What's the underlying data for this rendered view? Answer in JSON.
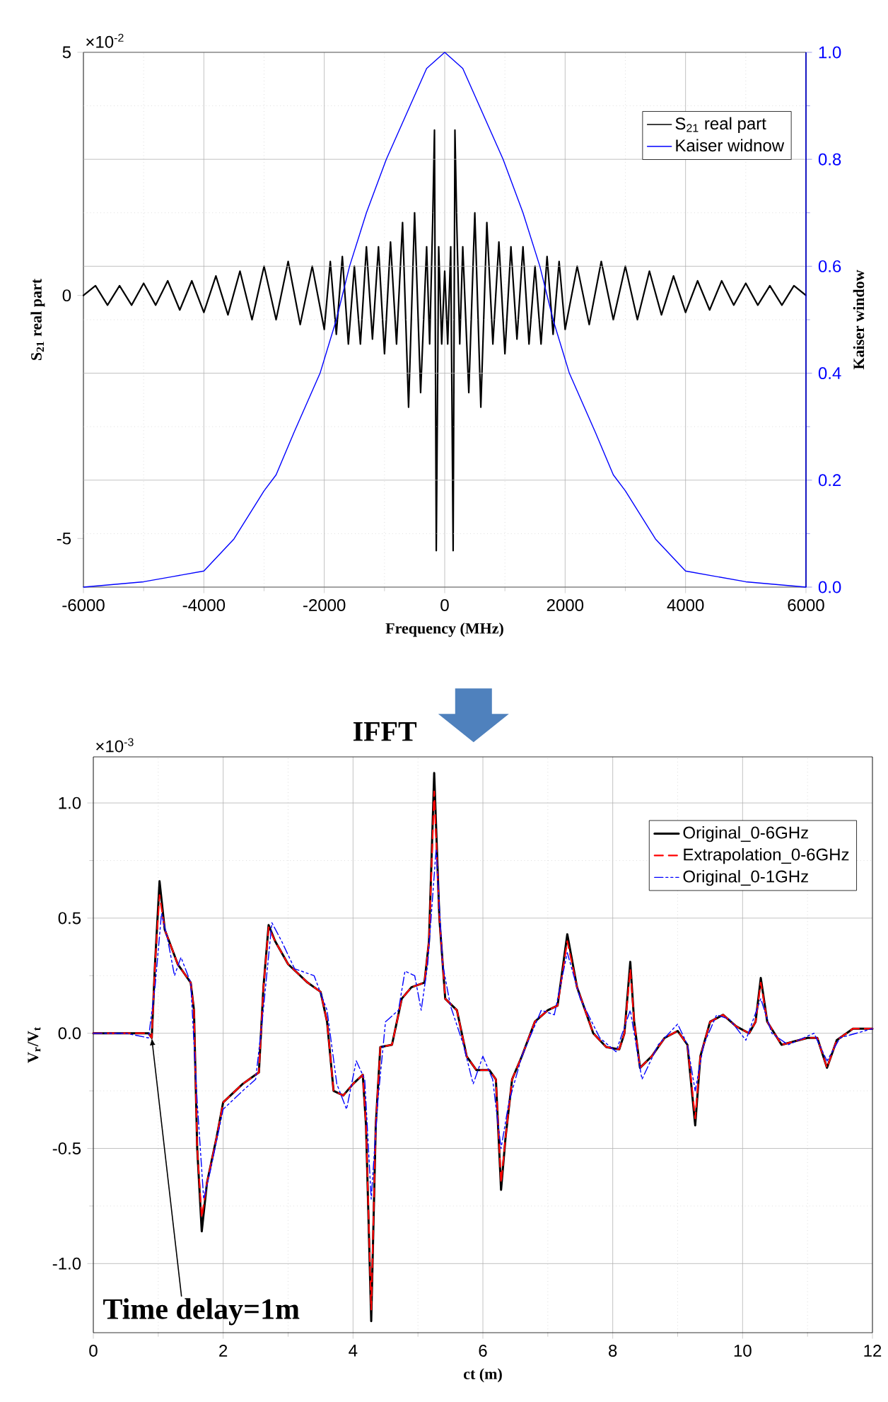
{
  "chart_data": [
    {
      "type": "line",
      "xlabel": "Frequency (MHz)",
      "ylabel": "S$_{21}$ real part",
      "y2label": "Kaiser window",
      "xlim": [
        -6000,
        6000
      ],
      "xticks": [
        -6000,
        -4000,
        -2000,
        0,
        2000,
        4000,
        6000
      ],
      "ylim": [
        -6,
        5
      ],
      "yticks": [
        -5,
        0,
        5
      ],
      "y2lim": [
        0,
        1
      ],
      "y2ticks": [
        {
          "value": 0,
          "label": "0.0"
        },
        {
          "value": 0.2,
          "label": "0.2"
        },
        {
          "value": 0.4,
          "label": "0.4"
        },
        {
          "value": 0.6,
          "label": "0.6"
        },
        {
          "value": 0.8,
          "label": "0.8"
        },
        {
          "value": 1,
          "label": "1.0"
        }
      ],
      "grid": true,
      "legend": "top right",
      "annotations": [
        "×10$^{-2}$"
      ],
      "series": [
        {
          "name": "S$_{21}$ real part",
          "color": "#000000",
          "line_style": "solid",
          "x": [
            -6000,
            -5800,
            -5600,
            -5400,
            -5200,
            -5000,
            -4800,
            -4600,
            -4400,
            -4200,
            -4000,
            -3800,
            -3600,
            -3400,
            -3200,
            -3000,
            -2800,
            -2600,
            -2400,
            -2200,
            -2000,
            -1900,
            -1800,
            -1700,
            -1600,
            -1500,
            -1400,
            -1300,
            -1200,
            -1100,
            -1000,
            -900,
            -800,
            -700,
            -600,
            -500,
            -400,
            -300,
            -250,
            -200,
            -170,
            -140,
            -100,
            -50,
            0,
            50,
            100,
            140,
            170,
            200,
            250,
            300,
            400,
            500,
            600,
            700,
            800,
            900,
            1000,
            1100,
            1200,
            1300,
            1400,
            1500,
            1600,
            1700,
            1800,
            1900,
            2000,
            2200,
            2400,
            2600,
            2800,
            3000,
            3200,
            3400,
            3600,
            3800,
            4000,
            4200,
            4400,
            4600,
            4800,
            5000,
            5200,
            5400,
            5600,
            5800,
            6000
          ],
          "values": [
            0,
            0.2,
            -0.2,
            0.2,
            -0.2,
            0.25,
            -0.2,
            0.3,
            -0.3,
            0.3,
            -0.35,
            0.4,
            -0.4,
            0.5,
            -0.5,
            0.6,
            -0.5,
            0.7,
            -0.6,
            0.6,
            -0.7,
            0.7,
            -0.8,
            0.8,
            -1.0,
            0.6,
            -1.0,
            1.0,
            -0.9,
            1.0,
            -1.2,
            1.1,
            -1.0,
            1.5,
            -2.3,
            1.7,
            -2.0,
            1.0,
            -1.0,
            1.5,
            3.4,
            -5.25,
            1.0,
            -1.0,
            0.5,
            -1.0,
            1.0,
            -5.25,
            3.4,
            1.5,
            -1.0,
            1.0,
            -2.0,
            1.7,
            -2.3,
            1.5,
            -1.0,
            1.1,
            -1.2,
            1.0,
            -0.9,
            1.0,
            -1.0,
            0.6,
            -1.0,
            0.8,
            -0.8,
            0.7,
            -0.7,
            0.6,
            -0.6,
            0.7,
            -0.5,
            0.6,
            -0.5,
            0.5,
            -0.4,
            0.4,
            -0.35,
            0.3,
            -0.3,
            0.3,
            -0.2,
            0.25,
            -0.2,
            0.2,
            -0.2,
            0.2,
            0
          ]
        },
        {
          "name": "Kaiser widnow",
          "color": "#0000ff",
          "line_style": "solid",
          "axis": "y2",
          "x": [
            -6000,
            -5000,
            -4500,
            -4000,
            -3500,
            -3000,
            -2800,
            -2500,
            -2070,
            -1800,
            -1580,
            -1300,
            -970,
            -575,
            -300,
            0,
            300,
            575,
            970,
            1300,
            1580,
            1800,
            2070,
            2500,
            2800,
            3000,
            3500,
            4000,
            4500,
            5000,
            6000
          ],
          "values": [
            0,
            0.01,
            0.02,
            0.03,
            0.09,
            0.18,
            0.21,
            0.29,
            0.4,
            0.5,
            0.6,
            0.7,
            0.8,
            0.9,
            0.97,
            1,
            0.97,
            0.9,
            0.8,
            0.7,
            0.6,
            0.5,
            0.4,
            0.29,
            0.21,
            0.18,
            0.09,
            0.03,
            0.02,
            0.01,
            0
          ]
        }
      ]
    },
    {
      "type": "line",
      "xlabel": "ct (m)",
      "ylabel": "V$_{r}$/V$_{t}$",
      "xlim": [
        0,
        12
      ],
      "xticks": [
        0,
        2,
        4,
        6,
        8,
        10,
        12
      ],
      "ylim": [
        -1.3,
        1.2
      ],
      "yticks": [
        {
          "value": -1,
          "label": "-1.0"
        },
        {
          "value": -0.5,
          "label": "-0.5"
        },
        {
          "value": 0,
          "label": "0.0"
        },
        {
          "value": 0.5,
          "label": "0.5"
        },
        {
          "value": 1,
          "label": "1.0"
        }
      ],
      "grid": true,
      "legend": "top right",
      "annotations": [
        "×10$^{-3}$",
        "IFFT",
        {
          "text": "Time delay=1m",
          "x": 0.9,
          "y": -0.02
        }
      ],
      "series": [
        {
          "name": "Original_0-6GHz",
          "color": "#000000",
          "line_style": "solid",
          "x": [
            0,
            0.5,
            0.85,
            0.9,
            0.95,
            1.02,
            1.1,
            1.3,
            1.5,
            1.55,
            1.6,
            1.67,
            1.75,
            1.9,
            2.0,
            2.3,
            2.55,
            2.62,
            2.7,
            2.8,
            3.0,
            3.3,
            3.5,
            3.6,
            3.7,
            3.85,
            4.0,
            4.15,
            4.2,
            4.28,
            4.35,
            4.42,
            4.6,
            4.75,
            4.9,
            5.1,
            5.17,
            5.25,
            5.33,
            5.42,
            5.6,
            5.75,
            5.9,
            6.1,
            6.2,
            6.28,
            6.35,
            6.45,
            6.6,
            6.8,
            7.0,
            7.15,
            7.3,
            7.45,
            7.7,
            7.9,
            8.1,
            8.18,
            8.27,
            8.33,
            8.42,
            8.6,
            8.8,
            9.0,
            9.15,
            9.27,
            9.35,
            9.5,
            9.7,
            9.9,
            10.1,
            10.2,
            10.28,
            10.38,
            10.6,
            11.0,
            11.15,
            11.3,
            11.45,
            11.7,
            12.0
          ],
          "values": [
            0,
            0,
            0,
            -0.02,
            0.3,
            0.66,
            0.45,
            0.3,
            0.22,
            0.1,
            -0.5,
            -0.86,
            -0.65,
            -0.45,
            -0.3,
            -0.22,
            -0.17,
            0.2,
            0.47,
            0.4,
            0.3,
            0.22,
            0.18,
            0.05,
            -0.25,
            -0.27,
            -0.22,
            -0.18,
            -0.4,
            -1.25,
            -0.4,
            -0.06,
            -0.05,
            0.15,
            0.2,
            0.22,
            0.4,
            1.13,
            0.5,
            0.15,
            0.1,
            -0.1,
            -0.16,
            -0.16,
            -0.2,
            -0.68,
            -0.45,
            -0.2,
            -0.1,
            0.05,
            0.1,
            0.12,
            0.43,
            0.2,
            0.0,
            -0.06,
            -0.07,
            0.0,
            0.31,
            0.05,
            -0.15,
            -0.1,
            -0.02,
            0.01,
            -0.05,
            -0.4,
            -0.1,
            0.05,
            0.08,
            0.03,
            0.0,
            0.05,
            0.24,
            0.05,
            -0.05,
            -0.02,
            -0.02,
            -0.15,
            -0.03,
            0.02,
            0.02
          ]
        },
        {
          "name": "Extrapolation_0-6GHz",
          "color": "#ff0000",
          "line_style": "dashed",
          "x": [
            0,
            0.5,
            0.85,
            0.9,
            0.95,
            1.02,
            1.1,
            1.3,
            1.5,
            1.55,
            1.6,
            1.67,
            1.75,
            1.9,
            2.0,
            2.3,
            2.55,
            2.62,
            2.7,
            2.8,
            3.0,
            3.3,
            3.5,
            3.6,
            3.7,
            3.85,
            4.0,
            4.15,
            4.2,
            4.28,
            4.35,
            4.42,
            4.6,
            4.75,
            4.9,
            5.1,
            5.17,
            5.25,
            5.33,
            5.42,
            5.6,
            5.75,
            5.9,
            6.1,
            6.2,
            6.28,
            6.35,
            6.45,
            6.6,
            6.8,
            7.0,
            7.15,
            7.3,
            7.45,
            7.7,
            7.9,
            8.1,
            8.18,
            8.27,
            8.33,
            8.42,
            8.6,
            8.8,
            9.0,
            9.15,
            9.27,
            9.35,
            9.5,
            9.7,
            9.9,
            10.1,
            10.2,
            10.28,
            10.38,
            10.6,
            11.0,
            11.15,
            11.3,
            11.45,
            11.7,
            12.0
          ],
          "values": [
            0,
            0,
            0,
            -0.02,
            0.3,
            0.6,
            0.45,
            0.3,
            0.22,
            0.1,
            -0.5,
            -0.8,
            -0.65,
            -0.45,
            -0.3,
            -0.22,
            -0.17,
            0.2,
            0.46,
            0.4,
            0.3,
            0.22,
            0.18,
            0.05,
            -0.25,
            -0.27,
            -0.22,
            -0.18,
            -0.4,
            -1.2,
            -0.4,
            -0.06,
            -0.05,
            0.15,
            0.2,
            0.22,
            0.4,
            1.05,
            0.5,
            0.15,
            0.1,
            -0.1,
            -0.16,
            -0.16,
            -0.2,
            -0.65,
            -0.45,
            -0.2,
            -0.1,
            0.05,
            0.1,
            0.12,
            0.4,
            0.2,
            0.0,
            -0.06,
            -0.07,
            0.0,
            0.28,
            0.05,
            -0.15,
            -0.1,
            -0.02,
            0.01,
            -0.05,
            -0.37,
            -0.1,
            0.05,
            0.08,
            0.03,
            0.0,
            0.05,
            0.22,
            0.05,
            -0.05,
            -0.02,
            -0.02,
            -0.15,
            -0.03,
            0.02,
            0.02
          ]
        },
        {
          "name": "Original_0-1GHz",
          "color": "#0000ff",
          "line_style": "dashdot",
          "x": [
            0,
            0.5,
            0.85,
            0.95,
            1.05,
            1.15,
            1.25,
            1.35,
            1.5,
            1.6,
            1.7,
            1.8,
            2.0,
            2.3,
            2.5,
            2.6,
            2.75,
            2.9,
            3.1,
            3.4,
            3.6,
            3.75,
            3.9,
            4.05,
            4.18,
            4.28,
            4.38,
            4.5,
            4.7,
            4.8,
            4.95,
            5.05,
            5.15,
            5.28,
            5.38,
            5.5,
            5.7,
            5.85,
            6.0,
            6.15,
            6.28,
            6.4,
            6.6,
            6.9,
            7.1,
            7.3,
            7.5,
            7.8,
            8.05,
            8.27,
            8.45,
            8.7,
            9.0,
            9.15,
            9.27,
            9.4,
            9.6,
            9.8,
            10.05,
            10.28,
            10.45,
            10.7,
            11.1,
            11.3,
            11.5,
            12.0
          ],
          "values": [
            0,
            0,
            -0.02,
            0.2,
            0.52,
            0.4,
            0.25,
            0.33,
            0.22,
            -0.3,
            -0.72,
            -0.6,
            -0.33,
            -0.25,
            -0.2,
            0.05,
            0.48,
            0.4,
            0.28,
            0.25,
            0.1,
            -0.22,
            -0.33,
            -0.12,
            -0.2,
            -0.72,
            -0.3,
            0.05,
            0.1,
            0.27,
            0.25,
            0.1,
            0.3,
            0.8,
            0.3,
            0.12,
            -0.05,
            -0.22,
            -0.1,
            -0.2,
            -0.5,
            -0.3,
            -0.1,
            0.1,
            0.08,
            0.35,
            0.15,
            -0.02,
            -0.08,
            0.1,
            -0.2,
            -0.05,
            0.04,
            -0.05,
            -0.25,
            -0.05,
            0.08,
            0.06,
            -0.03,
            0.15,
            0.0,
            -0.05,
            0.0,
            -0.12,
            -0.02,
            0.02
          ]
        }
      ]
    }
  ]
}
